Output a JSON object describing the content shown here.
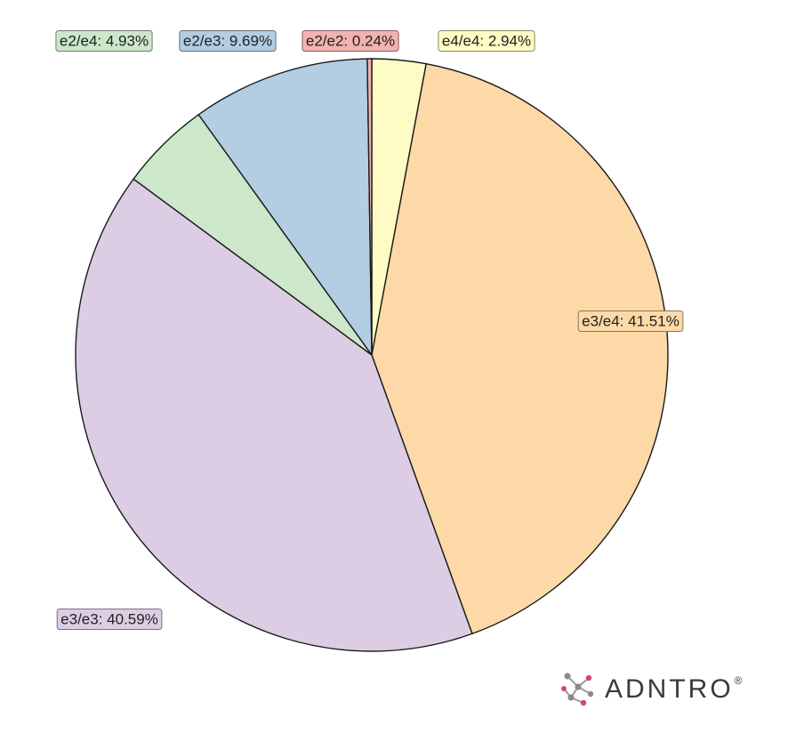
{
  "chart_data": {
    "type": "pie",
    "title": "",
    "labels": [
      "e4/e4",
      "e3/e4",
      "e3/e3",
      "e2/e4",
      "e2/e3",
      "e2/e2"
    ],
    "values": [
      2.94,
      41.51,
      40.59,
      4.93,
      9.69,
      0.24
    ],
    "unit": "%",
    "display_labels": [
      "e4/e4: 2.94%",
      "e3/e4: 41.51%",
      "e3/e3: 40.59%",
      "e2/e4: 4.93%",
      "e2/e3: 9.69%",
      "e2/e2: 0.24%"
    ],
    "colors": [
      "#fefcc4",
      "#fdd9a8",
      "#ddcde4",
      "#cce7c9",
      "#b3cde3",
      "#f2b2b0"
    ],
    "start_angle": "12 o'clock",
    "direction": "clockwise",
    "edge_color": "#1a1a1a",
    "legend": "none"
  },
  "brand": {
    "name": "ADNTRO",
    "registered_mark": "®",
    "logo_icon": "dna-network-icon"
  }
}
